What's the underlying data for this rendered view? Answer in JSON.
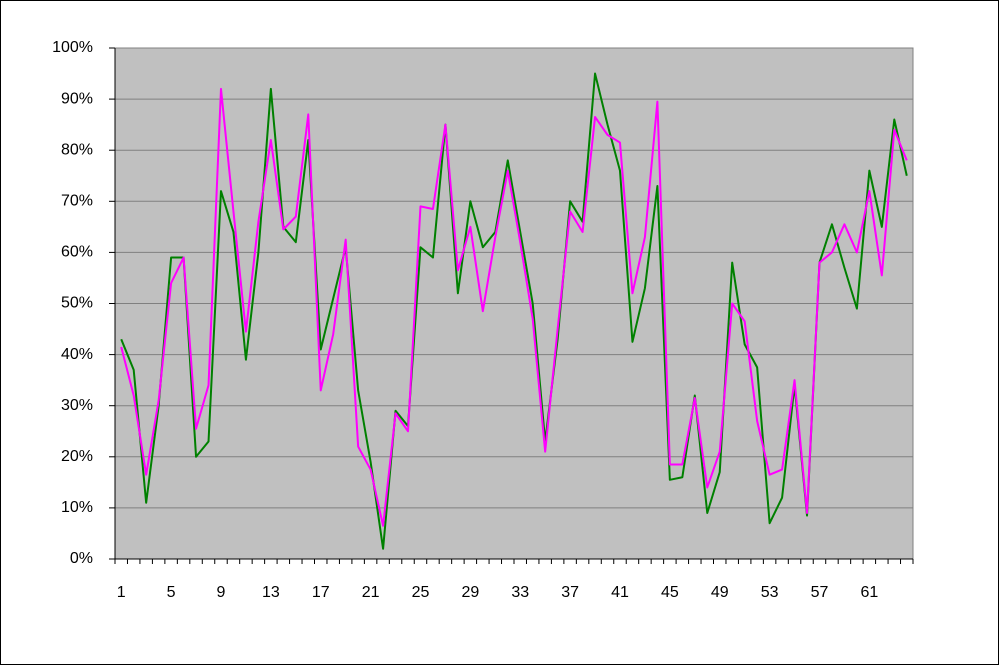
{
  "chart_data": {
    "type": "line",
    "categories": [
      "1",
      null,
      null,
      null,
      "5",
      null,
      null,
      null,
      "9",
      null,
      null,
      null,
      "13",
      null,
      null,
      null,
      "17",
      null,
      null,
      null,
      "21",
      null,
      null,
      null,
      "25",
      null,
      null,
      null,
      "29",
      null,
      null,
      null,
      "33",
      null,
      null,
      null,
      "37",
      null,
      null,
      null,
      "41",
      null,
      null,
      null,
      "45",
      null,
      null,
      null,
      "49",
      null,
      null,
      null,
      "53",
      null,
      null,
      null,
      "57",
      null,
      null,
      null,
      "61",
      null,
      null,
      null
    ],
    "series": [
      {
        "color": "#008000",
        "values": [
          43,
          37,
          11,
          30,
          59,
          59,
          20,
          23,
          72,
          64,
          39,
          60,
          92,
          65,
          62,
          82,
          41,
          51,
          61,
          33,
          19,
          2,
          29,
          26,
          61,
          59,
          85,
          52,
          70,
          61,
          64,
          78,
          64,
          50,
          23,
          43,
          70,
          66,
          95,
          85,
          76,
          42.5,
          53,
          73,
          15.5,
          16,
          32,
          9,
          17,
          58,
          42,
          37.5,
          7,
          12,
          34,
          8.5,
          58,
          65.5,
          57,
          49,
          76,
          65,
          86,
          75
        ]
      },
      {
        "color": "#ff00ff",
        "values": [
          41.5,
          32,
          16.5,
          31,
          54,
          59,
          25.5,
          34,
          92,
          68,
          44.5,
          66,
          82,
          64.5,
          67,
          87,
          33,
          44,
          62.5,
          22,
          17.5,
          6.5,
          28.5,
          25,
          69,
          68.5,
          85,
          56.5,
          65,
          48.5,
          63,
          76,
          62,
          47,
          21,
          45,
          68,
          64,
          86.5,
          83,
          81.5,
          52,
          63,
          89.5,
          18.5,
          18.5,
          31.5,
          14,
          21,
          50,
          46.5,
          27,
          16.5,
          17.5,
          35,
          9,
          58,
          60,
          65.5,
          60,
          72,
          55.5,
          84,
          78
        ]
      }
    ],
    "ylim": [
      0,
      100
    ],
    "yticks": [
      {
        "value": 0,
        "label": "0%"
      },
      {
        "value": 10,
        "label": "10%"
      },
      {
        "value": 20,
        "label": "20%"
      },
      {
        "value": 30,
        "label": "30%"
      },
      {
        "value": 40,
        "label": "40%"
      },
      {
        "value": 50,
        "label": "50%"
      },
      {
        "value": 60,
        "label": "60%"
      },
      {
        "value": 70,
        "label": "70%"
      },
      {
        "value": 80,
        "label": "80%"
      },
      {
        "value": 90,
        "label": "90%"
      },
      {
        "value": 100,
        "label": "100%"
      }
    ],
    "grid": true
  }
}
